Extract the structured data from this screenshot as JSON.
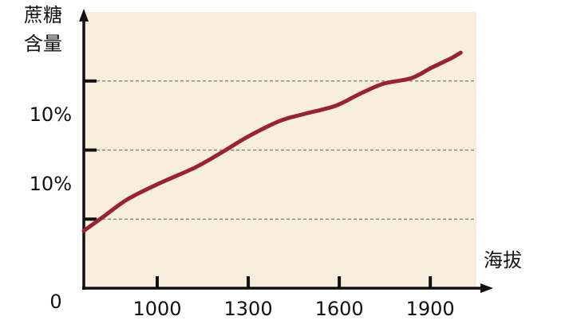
{
  "chart_data": {
    "type": "line",
    "y_label": [
      "蔗糖",
      "含量"
    ],
    "x_label": "海拔",
    "x": [
      758,
      824,
      903,
      1008,
      1126,
      1218,
      1297,
      1403,
      1482,
      1587,
      1666,
      1745,
      1837,
      1903,
      1969,
      2000
    ],
    "series": [
      {
        "color": "#9b2230",
        "values": [
          0.83,
          1.04,
          1.29,
          1.52,
          1.75,
          1.98,
          2.19,
          2.42,
          2.52,
          2.64,
          2.81,
          2.96,
          3.04,
          3.19,
          3.33,
          3.41
        ]
      }
    ],
    "xlim": [
      758,
      2060
    ],
    "xticks": [
      1000,
      1300,
      1600,
      1900
    ],
    "ylim": [
      0,
      4
    ],
    "yticks": [
      0,
      {
        "value": 1,
        "label": null
      },
      {
        "value": 2,
        "label": null
      },
      {
        "value": 3,
        "label": null
      }
    ],
    "y_annotations": [
      {
        "value": 1.5,
        "label": "10%"
      },
      {
        "value": 2.5,
        "label": "10%"
      }
    ],
    "grid": true,
    "background": "#f7efdc"
  }
}
